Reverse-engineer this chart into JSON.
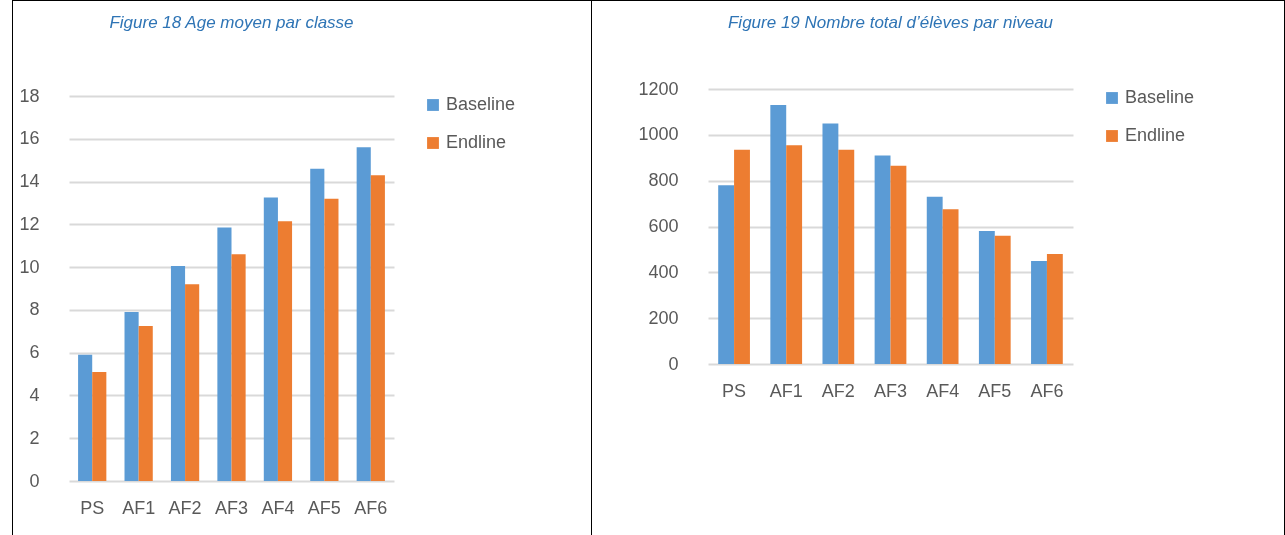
{
  "chart_data": [
    {
      "type": "bar",
      "title": "Figure 18 Age moyen par classe",
      "categories": [
        "PS",
        "AF1",
        "AF2",
        "AF3",
        "AF4",
        "AF5",
        "AF6"
      ],
      "series": [
        {
          "name": "Baseline",
          "color": "#5b9bd5",
          "values": [
            5.9,
            7.9,
            10.05,
            11.85,
            13.25,
            14.6,
            15.6
          ]
        },
        {
          "name": "Endline",
          "color": "#ed7d31",
          "values": [
            5.1,
            7.25,
            9.2,
            10.6,
            12.15,
            13.2,
            14.3
          ]
        }
      ],
      "ylim": [
        0,
        18
      ],
      "yticks": [
        0,
        2,
        4,
        6,
        8,
        10,
        12,
        14,
        16,
        18
      ],
      "grid": "y",
      "legend": "right"
    },
    {
      "type": "bar",
      "title": "Figure 19 Nombre total d’élèves par niveau",
      "categories": [
        "PS",
        "AF1",
        "AF2",
        "AF3",
        "AF4",
        "AF5",
        "AF6"
      ],
      "series": [
        {
          "name": "Baseline",
          "color": "#5b9bd5",
          "values": [
            780,
            1130,
            1050,
            910,
            730,
            580,
            450
          ]
        },
        {
          "name": "Endline",
          "color": "#ed7d31",
          "values": [
            935,
            955,
            935,
            865,
            675,
            560,
            480
          ]
        }
      ],
      "ylim": [
        0,
        1200
      ],
      "yticks": [
        0,
        200,
        400,
        600,
        800,
        1000,
        1200
      ],
      "grid": "y",
      "legend": "right"
    }
  ]
}
